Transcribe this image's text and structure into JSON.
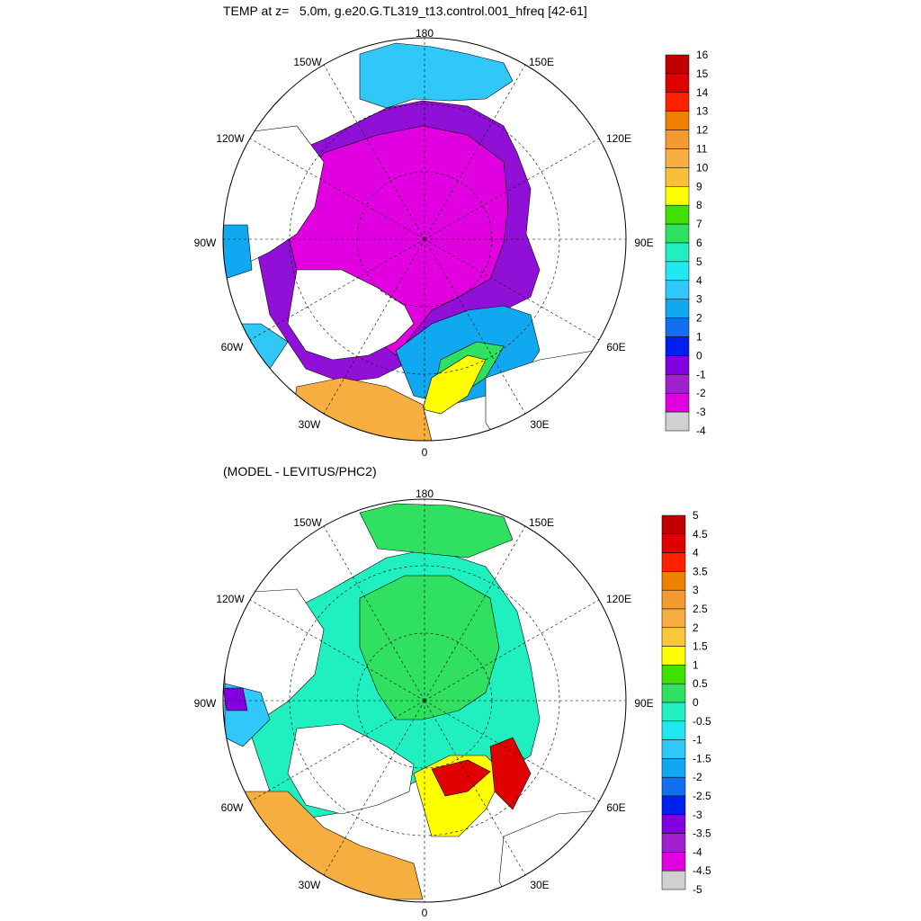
{
  "titles": {
    "top": "TEMP at z=   5.0m, g.e20.G.TL319_t13.control.001_hfreq [42-61]",
    "bottom": "(MODEL - LEVITUS/PHC2)"
  },
  "longitude_labels": {
    "lon_180": "180",
    "lon_150E": "150E",
    "lon_120E": "120E",
    "lon_90E": "90E",
    "lon_60E": "60E",
    "lon_30E": "30E",
    "lon_0": "0",
    "lon_30W": "30W",
    "lon_60W": "60W",
    "lon_90W": "90W",
    "lon_120W": "120W",
    "lon_150W": "150W"
  },
  "colorbar_top": {
    "labels": [
      "16",
      "15",
      "14",
      "13",
      "12",
      "11",
      "10",
      "9",
      "8",
      "7",
      "6",
      "5",
      "4",
      "3",
      "2",
      "1",
      "0",
      "-1",
      "-2",
      "-3",
      "-4"
    ],
    "colors": [
      "#c00000",
      "#e00000",
      "#ff2000",
      "#f08000",
      "#f59a30",
      "#f7ae40",
      "#f9bf38",
      "#ffff00",
      "#40e000",
      "#30e060",
      "#20f0c0",
      "#20e8f0",
      "#30c8f8",
      "#10a8f0",
      "#1070f0",
      "#0020f0",
      "#8000e0",
      "#a020d0",
      "#e000e0",
      "#d0d0d0",
      "#707070"
    ]
  },
  "colorbar_bottom": {
    "labels": [
      "5",
      "4.5",
      "4",
      "3.5",
      "3",
      "2.5",
      "2",
      "1.5",
      "1",
      "0.5",
      "0",
      "-0.5",
      "-1",
      "-1.5",
      "-2",
      "-2.5",
      "-3",
      "-3.5",
      "-4",
      "-4.5",
      "-5"
    ],
    "colors": [
      "#c00000",
      "#e00000",
      "#ff2000",
      "#f08000",
      "#f59a30",
      "#f7ae40",
      "#f9c838",
      "#ffff00",
      "#40e000",
      "#30e060",
      "#20f0c0",
      "#20e8f0",
      "#30c8f8",
      "#10a8f0",
      "#1070f0",
      "#0020f0",
      "#8000e0",
      "#a020d0",
      "#e000e0",
      "#d0d0d0",
      "#707070"
    ]
  },
  "field_colors": {
    "top_ocean": "#e000e0",
    "top_shelf": "#9010d8",
    "top_warm_a": "#30c8f8",
    "top_warm_b": "#10a8f0",
    "top_atlantic": "#f7ae40",
    "top_green": "#30e060",
    "top_yellow": "#ffff00",
    "bottom_ocean": "#30e060",
    "bottom_cyan": "#20f0c0",
    "bottom_blue": "#30c8f8",
    "bottom_red": "#e00000",
    "bottom_orange": "#f7ae40",
    "bottom_yellow": "#ffff00",
    "bottom_purple": "#8000e0",
    "land": "#ffffff"
  }
}
